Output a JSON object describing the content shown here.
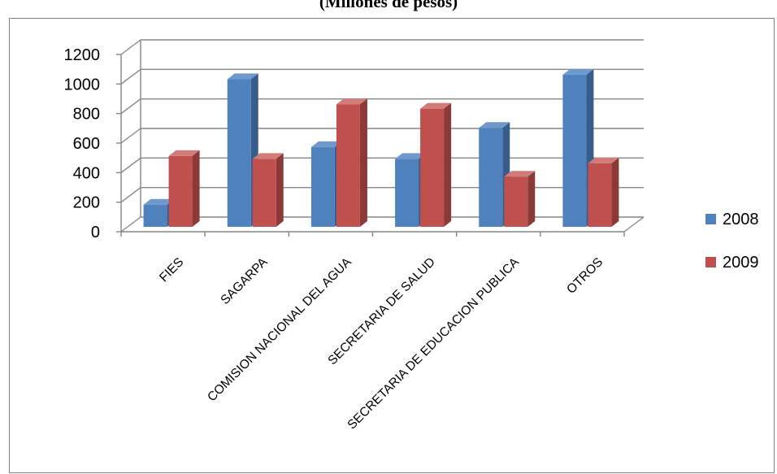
{
  "page": {
    "title": "(Millones de pesos)"
  },
  "chart_data": {
    "type": "bar",
    "title": "(Millones de pesos)",
    "xlabel": "",
    "ylabel": "",
    "categories": [
      "FIES",
      "SAGARPA",
      "COMISION NACIONAL DEL AGUA",
      "SECRETARIA DE SALUD",
      "SECRETARIA DE EDUCACION PUBLICA",
      "OTROS"
    ],
    "series": [
      {
        "name": "2008",
        "values": [
          150,
          1000,
          540,
          460,
          670,
          1030
        ],
        "color": "#4F81BD",
        "side_color": "#385D8A",
        "top_color": "#6F98CC"
      },
      {
        "name": "2009",
        "values": [
          480,
          460,
          830,
          800,
          340,
          430
        ],
        "color": "#C0504D",
        "side_color": "#8C3A38",
        "top_color": "#D27C7A"
      }
    ],
    "ylim": [
      0,
      1200
    ],
    "yticks": [
      0,
      200,
      400,
      600,
      800,
      1000,
      1200
    ],
    "grid": true,
    "legend": "right",
    "style": "3d-clustered-column"
  }
}
